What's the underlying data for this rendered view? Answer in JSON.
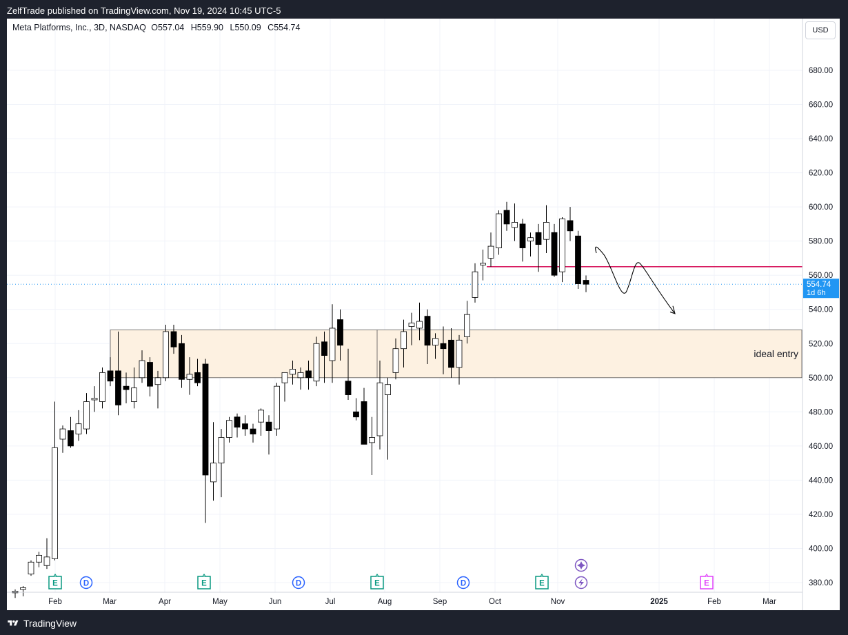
{
  "header": {
    "publish_text": "ZelfTrade published on TradingView.com, Nov 19, 2024 10:45 UTC-5"
  },
  "legend": {
    "symbol": "Meta Platforms, Inc., 3D, NASDAQ",
    "o_label": "O",
    "o_value": "557.04",
    "h_label": "H",
    "h_value": "559.90",
    "l_label": "L",
    "l_value": "550.09",
    "c_label": "C",
    "c_value": "554.74"
  },
  "currency": "USD",
  "price_tag": {
    "price": "554.74",
    "countdown": "1d 6h"
  },
  "annotation": {
    "zone_label": "ideal entry"
  },
  "footer": {
    "brand": "TradingView"
  },
  "colors": {
    "up_fill": "#ffffff",
    "down_fill": "#000000",
    "wick": "#000000",
    "resistance": "#d81b60",
    "zone_fill": "#fdf1e1",
    "zone_border": "#555555",
    "price_tag": "#2196f3",
    "earnings": "#089981",
    "dividends": "#2962ff",
    "splits": "#7e57c2",
    "future_earnings": "#e040fb"
  },
  "chart_data": {
    "type": "candlestick",
    "title": "Meta Platforms, Inc., 3D, NASDAQ",
    "ylim": [
      372,
      700
    ],
    "y_ticks": [
      "680.00",
      "660.00",
      "640.00",
      "620.00",
      "600.00",
      "580.00",
      "560.00",
      "540.00",
      "520.00",
      "500.00",
      "480.00",
      "460.00",
      "440.00",
      "420.00",
      "400.00",
      "380.00"
    ],
    "x_ticks": [
      "Feb",
      "Mar",
      "Apr",
      "May",
      "Jun",
      "Jul",
      "Aug",
      "Sep",
      "Oct",
      "Nov",
      "2025",
      "Feb",
      "Mar"
    ],
    "x_tick_bold": [
      "2025"
    ],
    "grid": true,
    "last_price": 554.74,
    "candles": [
      {
        "o": 374,
        "h": 376,
        "l": 371,
        "c": 375
      },
      {
        "o": 376,
        "h": 378,
        "l": 372,
        "c": 377
      },
      {
        "o": 385,
        "h": 393,
        "l": 384,
        "c": 392
      },
      {
        "o": 392,
        "h": 398,
        "l": 389,
        "c": 396
      },
      {
        "o": 390,
        "h": 406,
        "l": 388,
        "c": 395
      },
      {
        "o": 394,
        "h": 486,
        "l": 393,
        "c": 459
      },
      {
        "o": 464,
        "h": 472,
        "l": 456,
        "c": 470
      },
      {
        "o": 469,
        "h": 477,
        "l": 459,
        "c": 460
      },
      {
        "o": 467,
        "h": 481,
        "l": 463,
        "c": 473
      },
      {
        "o": 470,
        "h": 491,
        "l": 467,
        "c": 486
      },
      {
        "o": 487,
        "h": 495,
        "l": 480,
        "c": 488
      },
      {
        "o": 486,
        "h": 506,
        "l": 482,
        "c": 503
      },
      {
        "o": 504,
        "h": 512,
        "l": 495,
        "c": 498
      },
      {
        "o": 504,
        "h": 527,
        "l": 478,
        "c": 484
      },
      {
        "o": 495,
        "h": 503,
        "l": 485,
        "c": 493
      },
      {
        "o": 486,
        "h": 506,
        "l": 482,
        "c": 494
      },
      {
        "o": 500,
        "h": 516,
        "l": 497,
        "c": 510
      },
      {
        "o": 509,
        "h": 512,
        "l": 489,
        "c": 495
      },
      {
        "o": 496,
        "h": 504,
        "l": 482,
        "c": 500
      },
      {
        "o": 500,
        "h": 531,
        "l": 498,
        "c": 527
      },
      {
        "o": 527,
        "h": 531,
        "l": 514,
        "c": 518
      },
      {
        "o": 520,
        "h": 525,
        "l": 494,
        "c": 499
      },
      {
        "o": 499,
        "h": 512,
        "l": 490,
        "c": 502
      },
      {
        "o": 503,
        "h": 511,
        "l": 495,
        "c": 497
      },
      {
        "o": 508,
        "h": 511,
        "l": 415,
        "c": 443
      },
      {
        "o": 439,
        "h": 474,
        "l": 428,
        "c": 450
      },
      {
        "o": 450,
        "h": 470,
        "l": 430,
        "c": 465
      },
      {
        "o": 465,
        "h": 477,
        "l": 462,
        "c": 475
      },
      {
        "o": 477,
        "h": 479,
        "l": 465,
        "c": 471
      },
      {
        "o": 473,
        "h": 478,
        "l": 466,
        "c": 470
      },
      {
        "o": 470,
        "h": 473,
        "l": 462,
        "c": 467
      },
      {
        "o": 474,
        "h": 482,
        "l": 466,
        "c": 481
      },
      {
        "o": 474,
        "h": 478,
        "l": 455,
        "c": 469
      },
      {
        "o": 470,
        "h": 497,
        "l": 466,
        "c": 495
      },
      {
        "o": 497,
        "h": 503,
        "l": 486,
        "c": 503
      },
      {
        "o": 502,
        "h": 510,
        "l": 496,
        "c": 505
      },
      {
        "o": 500,
        "h": 506,
        "l": 493,
        "c": 503
      },
      {
        "o": 504,
        "h": 510,
        "l": 493,
        "c": 500
      },
      {
        "o": 498,
        "h": 524,
        "l": 495,
        "c": 520
      },
      {
        "o": 521,
        "h": 527,
        "l": 497,
        "c": 513
      },
      {
        "o": 510,
        "h": 543,
        "l": 497,
        "c": 529
      },
      {
        "o": 534,
        "h": 540,
        "l": 510,
        "c": 519
      },
      {
        "o": 498,
        "h": 517,
        "l": 487,
        "c": 490
      },
      {
        "o": 480,
        "h": 488,
        "l": 475,
        "c": 477
      },
      {
        "o": 486,
        "h": 494,
        "l": 461,
        "c": 461
      },
      {
        "o": 462,
        "h": 477,
        "l": 443,
        "c": 465
      },
      {
        "o": 466,
        "h": 510,
        "l": 458,
        "c": 497
      },
      {
        "o": 490,
        "h": 500,
        "l": 452,
        "c": 496
      },
      {
        "o": 503,
        "h": 523,
        "l": 499,
        "c": 517
      },
      {
        "o": 517,
        "h": 534,
        "l": 506,
        "c": 527
      },
      {
        "o": 530,
        "h": 538,
        "l": 519,
        "c": 532
      },
      {
        "o": 529,
        "h": 544,
        "l": 522,
        "c": 533
      },
      {
        "o": 536,
        "h": 540,
        "l": 508,
        "c": 519
      },
      {
        "o": 519,
        "h": 526,
        "l": 511,
        "c": 523
      },
      {
        "o": 520,
        "h": 530,
        "l": 502,
        "c": 517
      },
      {
        "o": 522,
        "h": 529,
        "l": 500,
        "c": 506
      },
      {
        "o": 506,
        "h": 525,
        "l": 496,
        "c": 522
      },
      {
        "o": 524,
        "h": 545,
        "l": 520,
        "c": 537
      },
      {
        "o": 547,
        "h": 567,
        "l": 544,
        "c": 562
      },
      {
        "o": 566,
        "h": 575,
        "l": 557,
        "c": 567
      },
      {
        "o": 570,
        "h": 585,
        "l": 565,
        "c": 577
      },
      {
        "o": 576,
        "h": 598,
        "l": 572,
        "c": 596
      },
      {
        "o": 598,
        "h": 603,
        "l": 586,
        "c": 590
      },
      {
        "o": 588,
        "h": 602,
        "l": 580,
        "c": 591
      },
      {
        "o": 590,
        "h": 593,
        "l": 568,
        "c": 576
      },
      {
        "o": 580,
        "h": 585,
        "l": 571,
        "c": 582
      },
      {
        "o": 585,
        "h": 590,
        "l": 562,
        "c": 578
      },
      {
        "o": 581,
        "h": 601,
        "l": 573,
        "c": 591
      },
      {
        "o": 585,
        "h": 590,
        "l": 559,
        "c": 560
      },
      {
        "o": 562,
        "h": 594,
        "l": 556,
        "c": 593
      },
      {
        "o": 592,
        "h": 600,
        "l": 580,
        "c": 586
      },
      {
        "o": 583,
        "h": 586,
        "l": 552,
        "c": 555
      },
      {
        "o": 557.04,
        "h": 559.9,
        "l": 550.09,
        "c": 554.74
      }
    ],
    "annotations": {
      "entry_zone": {
        "y0": 500,
        "y1": 528,
        "label": "ideal entry"
      },
      "resistance": 565,
      "projection_path_prices": [
        563,
        574,
        560,
        550,
        567,
        560,
        537
      ]
    },
    "events": [
      "E",
      "D",
      "E",
      "D",
      "E",
      "D",
      "E",
      "E"
    ],
    "event_types": [
      "earnings",
      "dividends",
      "earnings",
      "dividends",
      "earnings",
      "dividends",
      "earnings",
      "future-earnings"
    ]
  }
}
